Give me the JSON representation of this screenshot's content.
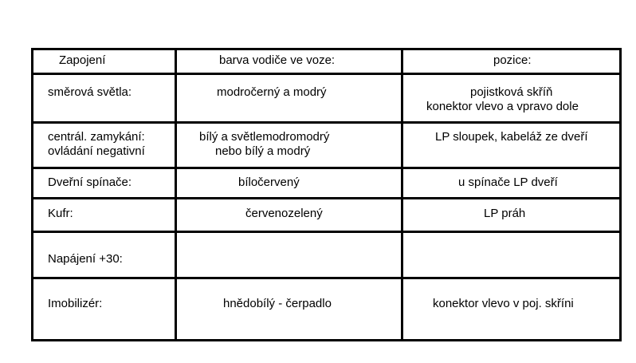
{
  "table": {
    "headers": [
      "Zapojení",
      "barva vodiče ve voze:",
      "pozice:"
    ],
    "rows": [
      {
        "connection": [
          "směrová světla:"
        ],
        "color": [
          "modročerný a modrý"
        ],
        "position": [
          "pojistková skříň",
          "konektor vlevo a vpravo dole"
        ]
      },
      {
        "connection": [
          "centrál. zamykání:",
          "ovládání negativní"
        ],
        "color": [
          "bílý a světlemodromodrý",
          "nebo bílý a modrý"
        ],
        "position": [
          "LP sloupek, kabeláž ze dveří"
        ]
      },
      {
        "connection": [
          "Dveřní spínače:"
        ],
        "color": [
          "bíločervený"
        ],
        "position": [
          "u spínače LP dveří"
        ]
      },
      {
        "connection": [
          "Kufr:"
        ],
        "color": [
          "červenozelený"
        ],
        "position": [
          "LP práh"
        ]
      },
      {
        "connection": [
          "Napájení +30:"
        ],
        "color": [],
        "position": []
      },
      {
        "connection": [
          "Imobilizér:"
        ],
        "color": [
          "hnědobílý - čerpadlo"
        ],
        "position": [
          "konektor vlevo v poj. skříni"
        ]
      }
    ]
  }
}
